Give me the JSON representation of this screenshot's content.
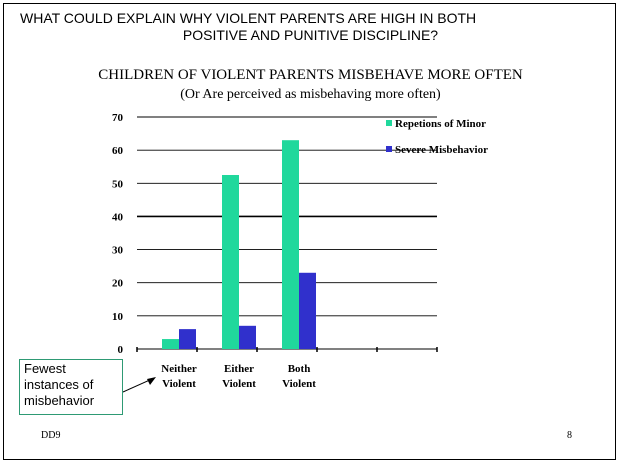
{
  "slide": {
    "heading_line1": "WHAT COULD EXPLAIN WHY VIOLENT PARENTS ARE  HIGH IN BOTH",
    "heading_line2": "POSITIVE AND PUNITIVE DISCIPLINE?",
    "callout_lines": [
      "Fewest",
      "instances of",
      "misbehavior"
    ],
    "footer_left": "DD9",
    "footer_right": "8"
  },
  "chart_data": {
    "type": "bar",
    "title": "CHILDREN OF VIOLENT PARENTS MISBEHAVE MORE OFTEN",
    "subtitle": "(Or Are perceived as misbehaving more often)",
    "categories": [
      [
        "Neither",
        "Violent"
      ],
      [
        "Either",
        "Violent"
      ],
      [
        "Both",
        "Violent"
      ]
    ],
    "series": [
      {
        "name": "Repetions of Minor",
        "color": "#20d89c",
        "values": [
          3,
          52.5,
          63
        ]
      },
      {
        "name": "Severe Misbehavior",
        "color": "#3030cc",
        "values": [
          6,
          7,
          23
        ]
      }
    ],
    "ylim": [
      0,
      70
    ],
    "yticks": [
      0,
      10,
      20,
      30,
      40,
      50,
      60,
      70
    ],
    "grid": true,
    "legend": "top-right"
  }
}
